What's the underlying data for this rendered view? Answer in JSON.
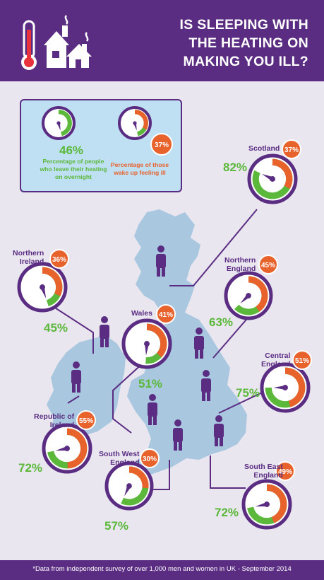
{
  "header": {
    "title_lines": [
      "IS SLEEPING WITH",
      "THE HEATING ON",
      "MAKING YOU ILL?"
    ],
    "icons": [
      "thermometer-icon",
      "houses-icon"
    ]
  },
  "colors": {
    "purple": "#5a2d82",
    "green": "#5bb83a",
    "orange": "#e8622c",
    "light_blue": "#bfdff3",
    "map_blue": "#a9c8e0",
    "background": "#e9e6ef"
  },
  "legend": {
    "left": {
      "value": "46%",
      "text_lines": [
        "Percentage of people",
        "who leave their heating",
        "on overnight"
      ]
    },
    "right": {
      "value": "37%",
      "text_lines": [
        "Percentage of those",
        "wake up feeling ill"
      ]
    }
  },
  "regions": [
    {
      "id": "scotland",
      "name_lines": [
        "Scotland"
      ],
      "heating": "82%",
      "ill": "37%",
      "heating_num": 82,
      "ill_num": 37
    },
    {
      "id": "northern-ireland",
      "name_lines": [
        "Northern",
        "Ireland"
      ],
      "heating": "45%",
      "ill": "36%",
      "heating_num": 45,
      "ill_num": 36
    },
    {
      "id": "northern-england",
      "name_lines": [
        "Northern",
        "England"
      ],
      "heating": "63%",
      "ill": "45%",
      "heating_num": 63,
      "ill_num": 45
    },
    {
      "id": "wales",
      "name_lines": [
        "Wales"
      ],
      "heating": "51%",
      "ill": "41%",
      "heating_num": 51,
      "ill_num": 41
    },
    {
      "id": "central-england",
      "name_lines": [
        "Central",
        "England"
      ],
      "heating": "75%",
      "ill": "51%",
      "heating_num": 75,
      "ill_num": 51
    },
    {
      "id": "republic-of-ireland",
      "name_lines": [
        "Republic of",
        "Ireland"
      ],
      "heating": "72%",
      "ill": "55%",
      "heating_num": 72,
      "ill_num": 55
    },
    {
      "id": "south-west-england",
      "name_lines": [
        "South West",
        "England"
      ],
      "heating": "57%",
      "ill": "30%",
      "heating_num": 57,
      "ill_num": 30
    },
    {
      "id": "south-east-england",
      "name_lines": [
        "South East",
        "England"
      ],
      "heating": "72%",
      "ill": "49%",
      "heating_num": 72,
      "ill_num": 49
    }
  ],
  "footer": {
    "note": "*Data from independent survey of over 1,000 men and women in UK - September 2014"
  }
}
